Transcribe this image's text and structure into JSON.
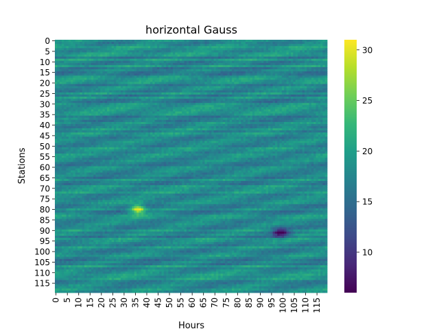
{
  "chart_data": {
    "type": "heatmap",
    "title": "horizontal Gauss",
    "xlabel": "Hours",
    "ylabel": "Stations",
    "n_cols": 120,
    "n_rows": 120,
    "x_tick_labels": [
      "0",
      "5",
      "10",
      "15",
      "20",
      "25",
      "30",
      "35",
      "40",
      "45",
      "50",
      "55",
      "60",
      "65",
      "70",
      "75",
      "80",
      "85",
      "90",
      "95",
      "100",
      "105",
      "110",
      "115"
    ],
    "y_tick_labels": [
      "0",
      "5",
      "10",
      "15",
      "20",
      "25",
      "30",
      "35",
      "40",
      "45",
      "50",
      "55",
      "60",
      "65",
      "70",
      "75",
      "80",
      "85",
      "90",
      "95",
      "100",
      "105",
      "110",
      "115"
    ],
    "colorbar": {
      "colormap": "viridis",
      "vmin": 6,
      "vmax": 31,
      "ticks": [
        "10",
        "15",
        "20",
        "25",
        "30"
      ]
    },
    "baseline_value": 18,
    "features": [
      {
        "kind": "hot spot",
        "hour": 36,
        "station": 80,
        "value": 31
      },
      {
        "kind": "cold spot",
        "hour": 99,
        "station": 91,
        "value": 6
      }
    ]
  }
}
